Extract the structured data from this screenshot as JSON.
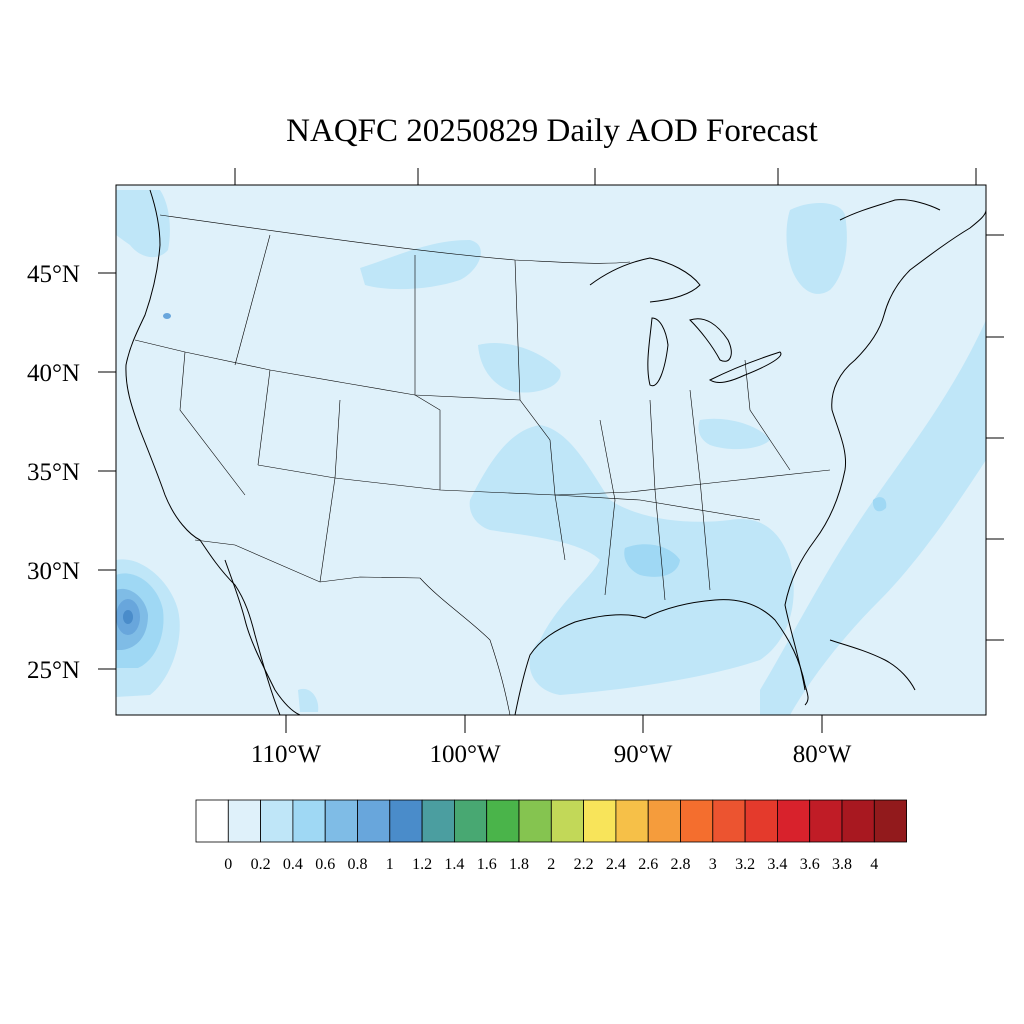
{
  "title": "NAQFC 20250829 Daily AOD Forecast",
  "map": {
    "background_color": "#dff1fa",
    "lat_labels": [
      "45°N",
      "40°N",
      "35°N",
      "30°N",
      "25°N"
    ],
    "lon_labels": [
      "110°W",
      "100°W",
      "90°W",
      "80°W"
    ]
  },
  "colorbar": {
    "colors": [
      "#ffffff",
      "#dff1fa",
      "#bfe6f8",
      "#9fd8f4",
      "#7fbce6",
      "#68a6dc",
      "#4a8cca",
      "#4b9ea0",
      "#48a872",
      "#4ab44a",
      "#85c450",
      "#c2d858",
      "#f8e45a",
      "#f6c048",
      "#f59c3c",
      "#f46e2e",
      "#ec5430",
      "#e43a2c",
      "#d8222c",
      "#c01c26",
      "#a81820",
      "#921a1c"
    ],
    "labels": [
      "0",
      "0.2",
      "0.4",
      "0.6",
      "0.8",
      "1",
      "1.2",
      "1.4",
      "1.6",
      "1.8",
      "2",
      "2.2",
      "2.4",
      "2.6",
      "2.8",
      "3",
      "3.2",
      "3.4",
      "3.6",
      "3.8",
      "4"
    ]
  }
}
